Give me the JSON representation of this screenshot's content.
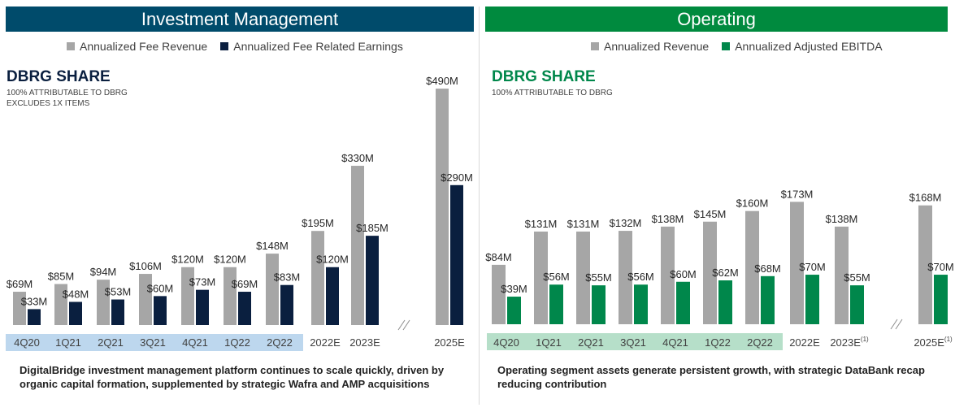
{
  "left": {
    "banner": "Investment Management",
    "banner_color": "#004b6b",
    "legend": [
      "Annualized Fee Revenue",
      "Annualized Fee Related Earnings"
    ],
    "share_title": "DBRG SHARE",
    "share_color": "#0a1f3f",
    "subtitle_lines": [
      "100% ATTRIBUTABLE TO DBRG",
      "EXCLUDES 1X ITEMS"
    ],
    "footnote": "DigitalBridge investment management platform continues to scale quickly, driven by organic capital formation, supplemented by strategic Wafra and AMP acquisitions"
  },
  "right": {
    "banner": "Operating",
    "banner_color": "#008a3e",
    "legend": [
      "Annualized Revenue",
      "Annualized Adjusted EBITDA"
    ],
    "share_title": "DBRG SHARE",
    "share_color": "#00874b",
    "subtitle_lines": [
      "100% ATTRIBUTABLE TO DBRG"
    ],
    "footnote": "Operating segment assets generate persistent growth, with strategic DataBank recap reducing contribution"
  },
  "chart_data": [
    {
      "type": "bar",
      "categories": [
        "4Q20",
        "1Q21",
        "2Q21",
        "3Q21",
        "4Q21",
        "1Q22",
        "2Q22",
        "2022E",
        "2023E",
        "2025E"
      ],
      "category_superscripts": [
        "",
        "",
        "",
        "",
        "",
        "",
        "",
        "",
        "",
        ""
      ],
      "highlighted_categories": 7,
      "highlight_color": "#bdd7ee",
      "series": [
        {
          "name": "Annualized Fee Revenue",
          "color": "#a6a6a6",
          "values": [
            69,
            85,
            94,
            106,
            120,
            120,
            148,
            195,
            330,
            490
          ],
          "labels": [
            "$69M",
            "$85M",
            "$94M",
            "$106M",
            "$120M",
            "$120M",
            "$148M",
            "$195M",
            "$330M",
            "$490M"
          ]
        },
        {
          "name": "Annualized Fee Related Earnings",
          "color": "#0a1f3f",
          "values": [
            33,
            48,
            53,
            60,
            73,
            69,
            83,
            120,
            185,
            290
          ],
          "labels": [
            "$33M",
            "$48M",
            "$53M",
            "$60M",
            "$73M",
            "$69M",
            "$83M",
            "$120M",
            "$185M",
            "$290M"
          ]
        }
      ],
      "axis_break_before": "2025E",
      "ylim": [
        0,
        520
      ]
    },
    {
      "type": "bar",
      "categories": [
        "4Q20",
        "1Q21",
        "2Q21",
        "3Q21",
        "4Q21",
        "1Q22",
        "2Q22",
        "2022E",
        "2023E",
        "2025E"
      ],
      "category_superscripts": [
        "",
        "",
        "",
        "",
        "",
        "",
        "",
        "",
        "(1)",
        "(1)"
      ],
      "highlighted_categories": 7,
      "highlight_color": "#b6dfc9",
      "series": [
        {
          "name": "Annualized Revenue",
          "color": "#a6a6a6",
          "values": [
            84,
            131,
            131,
            132,
            138,
            145,
            160,
            173,
            138,
            168
          ],
          "labels": [
            "$84M",
            "$131M",
            "$131M",
            "$132M",
            "$138M",
            "$145M",
            "$160M",
            "$173M",
            "$138M",
            "$168M"
          ]
        },
        {
          "name": "Annualized Adjusted EBITDA",
          "color": "#00874b",
          "values": [
            39,
            56,
            55,
            56,
            60,
            62,
            68,
            70,
            55,
            70
          ],
          "labels": [
            "$39M",
            "$56M",
            "$55M",
            "$56M",
            "$60M",
            "$62M",
            "$68M",
            "$70M",
            "$55M",
            "$70M"
          ]
        }
      ],
      "axis_break_before": "2025E",
      "ylim": [
        0,
        211
      ]
    }
  ]
}
